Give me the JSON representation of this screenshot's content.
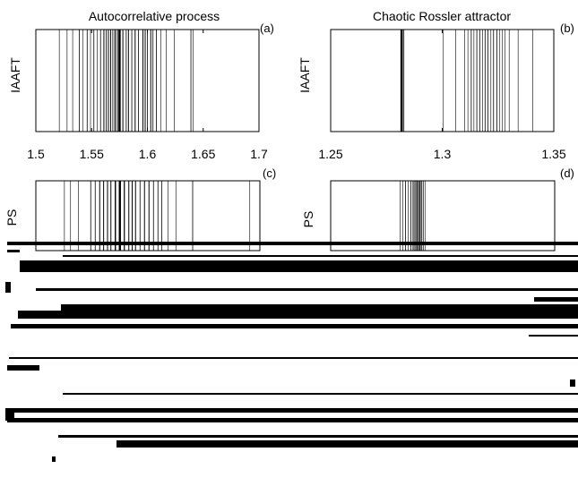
{
  "chart_data": [
    {
      "type": "line",
      "panel_label": "(a)",
      "title": "Autocorrelative process",
      "ylabel": "IAAFT",
      "xlim": [
        1.5,
        1.7
      ],
      "xticks": [
        "1.5",
        "1.55",
        "1.6",
        "1.65",
        "1.7"
      ],
      "xtick_values": [
        1.5,
        1.55,
        1.6,
        1.65,
        1.7
      ],
      "lines": [
        {
          "x": 1.521,
          "w": 0.6
        },
        {
          "x": 1.528,
          "w": 0.6
        },
        {
          "x": 1.533,
          "w": 0.6
        },
        {
          "x": 1.539,
          "w": 0.8
        },
        {
          "x": 1.542,
          "w": 0.6
        },
        {
          "x": 1.546,
          "w": 0.8
        },
        {
          "x": 1.549,
          "w": 0.6
        },
        {
          "x": 1.552,
          "w": 0.8
        },
        {
          "x": 1.555,
          "w": 0.6
        },
        {
          "x": 1.558,
          "w": 0.8
        },
        {
          "x": 1.561,
          "w": 1.0
        },
        {
          "x": 1.563,
          "w": 0.8
        },
        {
          "x": 1.565,
          "w": 1.0
        },
        {
          "x": 1.567,
          "w": 1.0
        },
        {
          "x": 1.569,
          "w": 0.8
        },
        {
          "x": 1.571,
          "w": 1.2
        },
        {
          "x": 1.573,
          "w": 1.0
        },
        {
          "x": 1.575,
          "w": 2.6
        },
        {
          "x": 1.578,
          "w": 1.0
        },
        {
          "x": 1.581,
          "w": 0.8
        },
        {
          "x": 1.583,
          "w": 1.0
        },
        {
          "x": 1.586,
          "w": 0.8
        },
        {
          "x": 1.589,
          "w": 1.0
        },
        {
          "x": 1.592,
          "w": 0.8
        },
        {
          "x": 1.596,
          "w": 1.0
        },
        {
          "x": 1.598,
          "w": 1.0
        },
        {
          "x": 1.6,
          "w": 0.8
        },
        {
          "x": 1.603,
          "w": 1.0
        },
        {
          "x": 1.605,
          "w": 0.8
        },
        {
          "x": 1.608,
          "w": 0.8
        },
        {
          "x": 1.612,
          "w": 0.6
        },
        {
          "x": 1.617,
          "w": 0.6
        },
        {
          "x": 1.624,
          "w": 0.6
        },
        {
          "x": 1.639,
          "w": 0.8
        },
        {
          "x": 1.641,
          "w": 0.6
        }
      ]
    },
    {
      "type": "line",
      "panel_label": "(b)",
      "title": "Chaotic Rossler attractor",
      "ylabel": "IAAFT",
      "xlim": [
        1.25,
        1.35
      ],
      "xticks": [
        "1.25",
        "1.3",
        "1.35"
      ],
      "xtick_values": [
        1.25,
        1.3,
        1.35
      ],
      "lines": [
        {
          "x": 1.2818,
          "w": 2.6
        },
        {
          "x": 1.2828,
          "w": 0.8
        },
        {
          "x": 1.3005,
          "w": 0.6
        },
        {
          "x": 1.306,
          "w": 0.6
        },
        {
          "x": 1.31,
          "w": 0.6
        },
        {
          "x": 1.3115,
          "w": 0.6
        },
        {
          "x": 1.313,
          "w": 0.8
        },
        {
          "x": 1.3142,
          "w": 0.6
        },
        {
          "x": 1.3155,
          "w": 0.8
        },
        {
          "x": 1.3168,
          "w": 0.8
        },
        {
          "x": 1.318,
          "w": 0.6
        },
        {
          "x": 1.3192,
          "w": 0.8
        },
        {
          "x": 1.3205,
          "w": 0.8
        },
        {
          "x": 1.3218,
          "w": 0.6
        },
        {
          "x": 1.323,
          "w": 0.8
        },
        {
          "x": 1.3245,
          "w": 0.8
        },
        {
          "x": 1.3258,
          "w": 0.6
        },
        {
          "x": 1.327,
          "w": 0.6
        },
        {
          "x": 1.3282,
          "w": 0.6
        },
        {
          "x": 1.33,
          "w": 0.6
        },
        {
          "x": 1.334,
          "w": 0.6
        },
        {
          "x": 1.3405,
          "w": 0.6
        }
      ]
    },
    {
      "type": "line",
      "panel_label": "(c)",
      "title": "",
      "ylabel": "PS",
      "xlim": [
        1.5,
        1.7
      ],
      "lines": [
        {
          "x": 1.5255,
          "w": 0.6
        },
        {
          "x": 1.531,
          "w": 0.6
        },
        {
          "x": 1.538,
          "w": 0.6
        },
        {
          "x": 1.549,
          "w": 0.8
        },
        {
          "x": 1.553,
          "w": 0.8
        },
        {
          "x": 1.557,
          "w": 1.0
        },
        {
          "x": 1.5605,
          "w": 1.0
        },
        {
          "x": 1.564,
          "w": 1.0
        },
        {
          "x": 1.567,
          "w": 1.0
        },
        {
          "x": 1.571,
          "w": 1.4
        },
        {
          "x": 1.575,
          "w": 2.4
        },
        {
          "x": 1.579,
          "w": 1.2
        },
        {
          "x": 1.583,
          "w": 1.0
        },
        {
          "x": 1.586,
          "w": 1.0
        },
        {
          "x": 1.589,
          "w": 1.0
        },
        {
          "x": 1.593,
          "w": 0.8
        },
        {
          "x": 1.597,
          "w": 1.0
        },
        {
          "x": 1.601,
          "w": 1.0
        },
        {
          "x": 1.605,
          "w": 0.8
        },
        {
          "x": 1.609,
          "w": 0.8
        },
        {
          "x": 1.6125,
          "w": 0.8
        },
        {
          "x": 1.618,
          "w": 0.6
        },
        {
          "x": 1.625,
          "w": 0.6
        },
        {
          "x": 1.64,
          "w": 0.8
        },
        {
          "x": 1.691,
          "w": 0.6
        }
      ]
    },
    {
      "type": "line",
      "panel_label": "(d)",
      "title": "",
      "ylabel": "PS",
      "xlim": [
        1.25,
        1.35
      ],
      "lines": [
        {
          "x": 1.281,
          "w": 0.6
        },
        {
          "x": 1.2822,
          "w": 0.6
        },
        {
          "x": 1.2834,
          "w": 0.8
        },
        {
          "x": 1.2846,
          "w": 0.6
        },
        {
          "x": 1.2858,
          "w": 0.8
        },
        {
          "x": 1.2868,
          "w": 1.0
        },
        {
          "x": 1.2876,
          "w": 1.0
        },
        {
          "x": 1.2884,
          "w": 1.2
        },
        {
          "x": 1.2891,
          "w": 1.0
        },
        {
          "x": 1.2898,
          "w": 1.2
        },
        {
          "x": 1.2905,
          "w": 1.0
        },
        {
          "x": 1.2913,
          "w": 0.8
        },
        {
          "x": 1.2921,
          "w": 0.6
        }
      ]
    }
  ]
}
